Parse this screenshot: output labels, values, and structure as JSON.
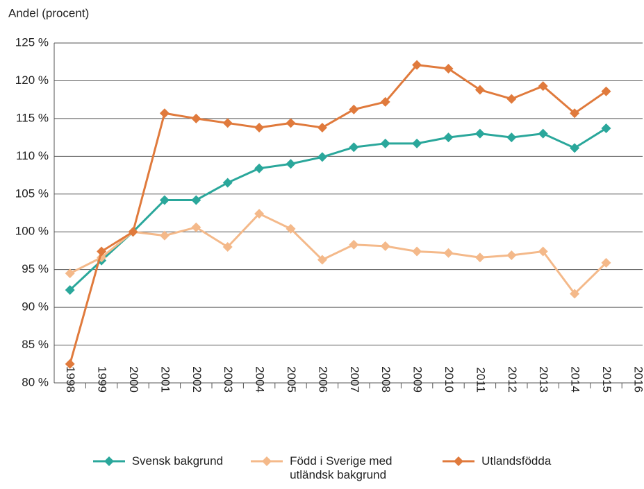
{
  "chart_data": {
    "type": "line",
    "y_label": "Andel (procent)",
    "categories": [
      "1998",
      "1999",
      "2000",
      "2001",
      "2002",
      "2003",
      "2004",
      "2005",
      "2006",
      "2007",
      "2008",
      "2009",
      "2010",
      "2011",
      "2012",
      "2013",
      "2014",
      "2015",
      "2016"
    ],
    "series": [
      {
        "name": "Svensk bakgrund",
        "color": "#2aa79b",
        "values": [
          92.3,
          96.2,
          100,
          104.2,
          104.2,
          106.5,
          108.4,
          109,
          109.9,
          111.2,
          111.7,
          111.7,
          112.5,
          113,
          112.5,
          113,
          111.1,
          113.7,
          null
        ]
      },
      {
        "name": "Född i Sverige med utländsk bakgrund",
        "color": "#f4b98a",
        "values": [
          94.5,
          96.6,
          100,
          99.5,
          100.6,
          98,
          102.4,
          100.4,
          96.3,
          98.3,
          98.1,
          97.4,
          97.2,
          96.6,
          96.9,
          97.4,
          91.8,
          95.9,
          null
        ]
      },
      {
        "name": "Utlandsfödda",
        "color": "#e07a3c",
        "values": [
          82.5,
          97.4,
          100,
          115.7,
          115,
          114.4,
          113.8,
          114.4,
          113.8,
          116.2,
          117.2,
          122.1,
          121.6,
          118.8,
          117.6,
          119.3,
          115.7,
          118.6,
          null
        ]
      }
    ],
    "ylim": [
      80,
      125
    ],
    "yticks": [
      {
        "value": 80,
        "label": "80 %"
      },
      {
        "value": 85,
        "label": "85 %"
      },
      {
        "value": 90,
        "label": "90 %"
      },
      {
        "value": 95,
        "label": "95 %"
      },
      {
        "value": 100,
        "label": "100 %"
      },
      {
        "value": 105,
        "label": "105 %"
      },
      {
        "value": 110,
        "label": "110 %"
      },
      {
        "value": 115,
        "label": "115 %"
      },
      {
        "value": 120,
        "label": "120 %"
      },
      {
        "value": 125,
        "label": "125 %"
      }
    ],
    "grid": true
  }
}
